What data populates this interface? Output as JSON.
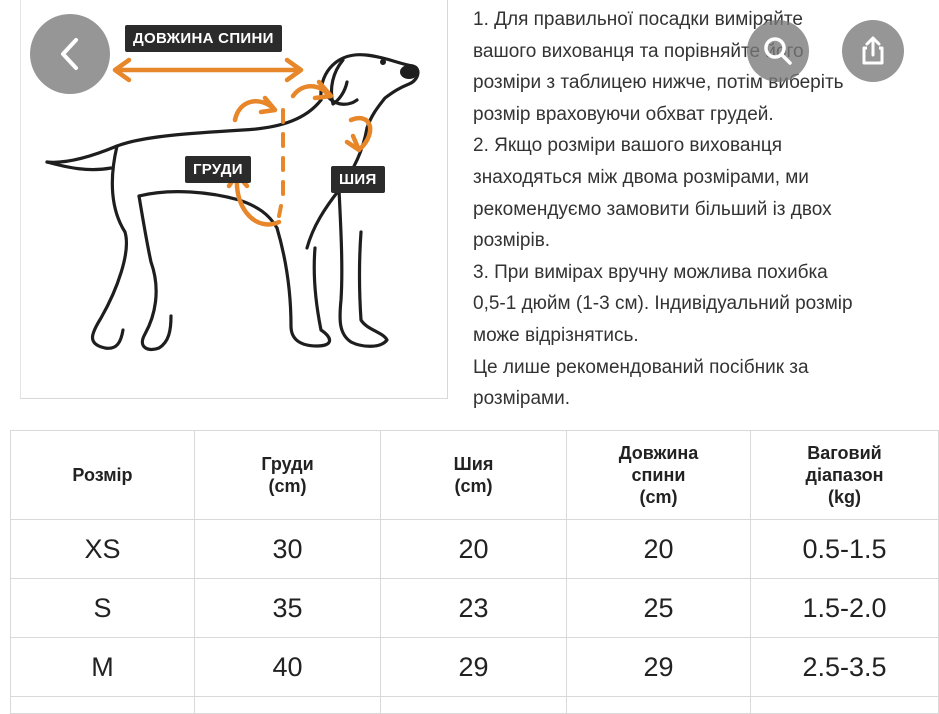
{
  "diagram": {
    "labels": {
      "back_length": "ДОВЖИНА СПИНИ",
      "chest": "ГРУДИ",
      "neck": "ШИЯ"
    },
    "accent_color": "#e8862a"
  },
  "instructions": {
    "lines": [
      "1. Для правильної посадки виміряйте",
      "вашого вихованця та порівняйте його",
      "розміри з таблицею нижче, потім виберіть",
      "розмір враховуючи обхват грудей.",
      "2. Якщо розміри вашого вихованця",
      "знаходяться між двома розмірами, ми",
      "рекомендуємо замовити більший із двох",
      "розмірів.",
      "3. При вимірах вручну можлива похибка",
      "0,5-1 дюйм (1-3 см). Індивідуальний розмір",
      "може відрізнятись.",
      "Це лише рекомендований посібник за",
      "розмірами."
    ]
  },
  "overlay": {
    "back_icon": "chevron-left-icon",
    "search_icon": "search-icon",
    "share_icon": "share-icon"
  },
  "table": {
    "headers": [
      [
        "Розмір"
      ],
      [
        "Груди",
        "(cm)"
      ],
      [
        "Шия",
        "(cm)"
      ],
      [
        "Довжина",
        "спини",
        "(cm)"
      ],
      [
        "Ваговий",
        "діапазон",
        "(kg)"
      ]
    ],
    "rows": [
      [
        "XS",
        "30",
        "20",
        "20",
        "0.5-1.5"
      ],
      [
        "S",
        "35",
        "23",
        "25",
        "1.5-2.0"
      ],
      [
        "M",
        "40",
        "29",
        "29",
        "2.5-3.5"
      ]
    ]
  }
}
